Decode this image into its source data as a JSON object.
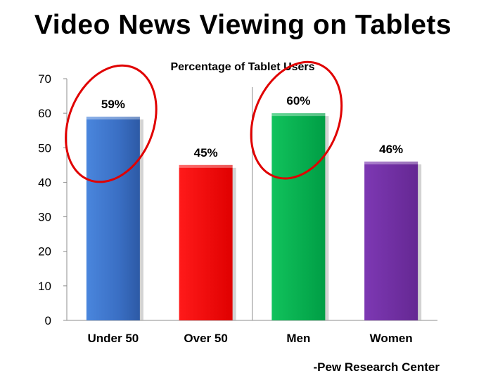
{
  "chart_data": {
    "type": "bar",
    "title": "Video News Viewing on Tablets",
    "subtitle": "Percentage of Tablet Users",
    "categories": [
      "Under 50",
      "Over 50",
      "Men",
      "Women"
    ],
    "values": [
      59,
      45,
      60,
      46
    ],
    "value_labels": [
      "59%",
      "45%",
      "60%",
      "46%"
    ],
    "colors": [
      "#3a6fc4",
      "#ff0000",
      "#00b050",
      "#7030a0"
    ],
    "ylim": [
      0,
      70
    ],
    "yticks": [
      0,
      10,
      20,
      30,
      40,
      50,
      60,
      70
    ],
    "circled_categories": [
      "Under 50",
      "Men"
    ],
    "group_divider_after": "Over 50",
    "grid": false,
    "xlabel": "",
    "ylabel": ""
  },
  "source": "-Pew Research Center"
}
